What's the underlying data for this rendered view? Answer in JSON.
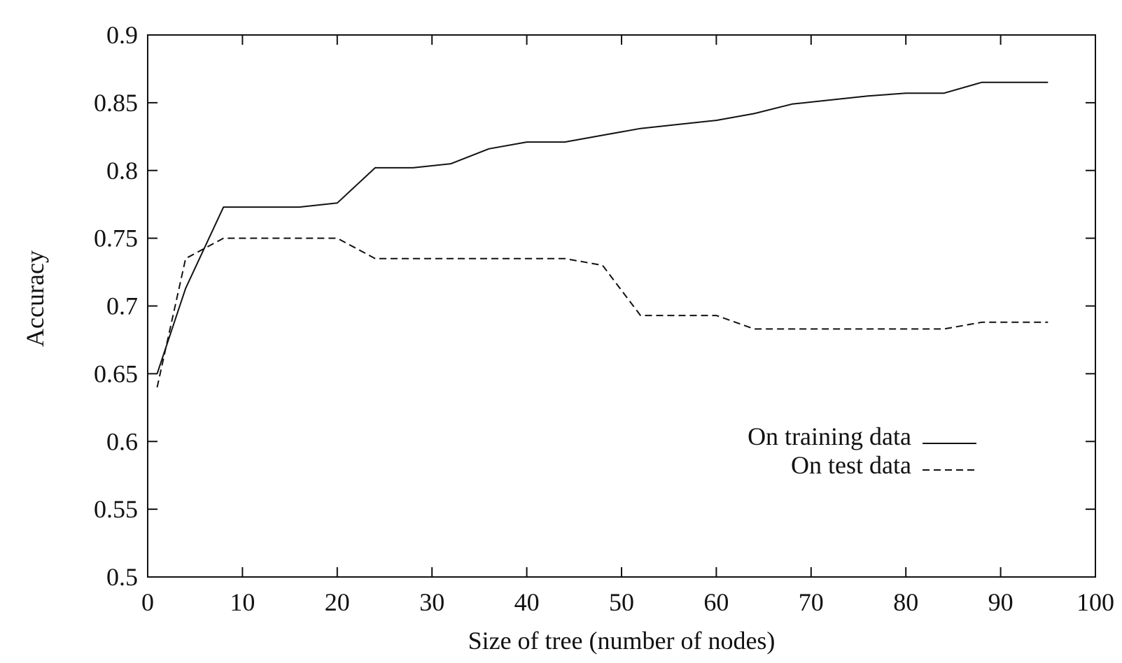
{
  "chart_data": {
    "type": "line",
    "title": "",
    "xlabel": "Size of tree (number of nodes)",
    "ylabel": "Accuracy",
    "xlim": [
      0,
      100
    ],
    "ylim": [
      0.5,
      0.9
    ],
    "x_ticks": [
      0,
      10,
      20,
      30,
      40,
      50,
      60,
      70,
      80,
      90,
      100
    ],
    "y_ticks": [
      0.5,
      0.55,
      0.6,
      0.65,
      0.7,
      0.75,
      0.8,
      0.85,
      0.9
    ],
    "x_tick_labels": [
      "0",
      "10",
      "20",
      "30",
      "40",
      "50",
      "60",
      "70",
      "80",
      "90",
      "100"
    ],
    "y_tick_labels": [
      "0.5",
      "0.55",
      "0.6",
      "0.65",
      "0.7",
      "0.75",
      "0.8",
      "0.85",
      "0.9"
    ],
    "grid": false,
    "legend_position": "center-right",
    "series": [
      {
        "name": "On training data",
        "style": "solid",
        "color": "#111111",
        "x": [
          1,
          4,
          8,
          12,
          16,
          20,
          24,
          28,
          32,
          36,
          40,
          44,
          48,
          52,
          56,
          60,
          64,
          68,
          72,
          76,
          80,
          84,
          88,
          92,
          95
        ],
        "y": [
          0.65,
          0.713,
          0.773,
          0.773,
          0.773,
          0.776,
          0.802,
          0.802,
          0.805,
          0.816,
          0.821,
          0.821,
          0.826,
          0.831,
          0.834,
          0.837,
          0.842,
          0.849,
          0.852,
          0.855,
          0.857,
          0.857,
          0.865,
          0.865,
          0.865
        ]
      },
      {
        "name": "On test data",
        "style": "dashed",
        "color": "#111111",
        "x": [
          1,
          4,
          8,
          12,
          16,
          20,
          24,
          28,
          32,
          36,
          40,
          44,
          48,
          52,
          56,
          60,
          64,
          68,
          72,
          76,
          80,
          84,
          88,
          92,
          95
        ],
        "y": [
          0.64,
          0.735,
          0.75,
          0.75,
          0.75,
          0.75,
          0.735,
          0.735,
          0.735,
          0.735,
          0.735,
          0.735,
          0.73,
          0.693,
          0.693,
          0.693,
          0.683,
          0.683,
          0.683,
          0.683,
          0.683,
          0.683,
          0.688,
          0.688,
          0.688
        ]
      }
    ]
  }
}
